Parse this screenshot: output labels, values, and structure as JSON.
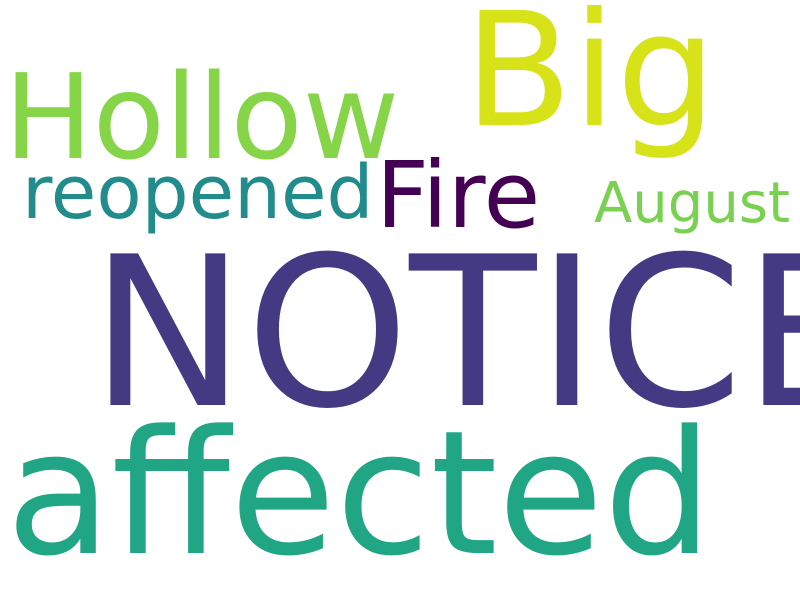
{
  "words": [
    {
      "text": "Big",
      "color": "#d8e219"
    },
    {
      "text": "Hollow",
      "color": "#86d549"
    },
    {
      "text": "reopened",
      "color": "#228c8d"
    },
    {
      "text": "Fire",
      "color": "#440154"
    },
    {
      "text": "August",
      "color": "#7ad151"
    },
    {
      "text": "NOTICE",
      "color": "#443983"
    },
    {
      "text": "affected",
      "color": "#21a685"
    }
  ]
}
